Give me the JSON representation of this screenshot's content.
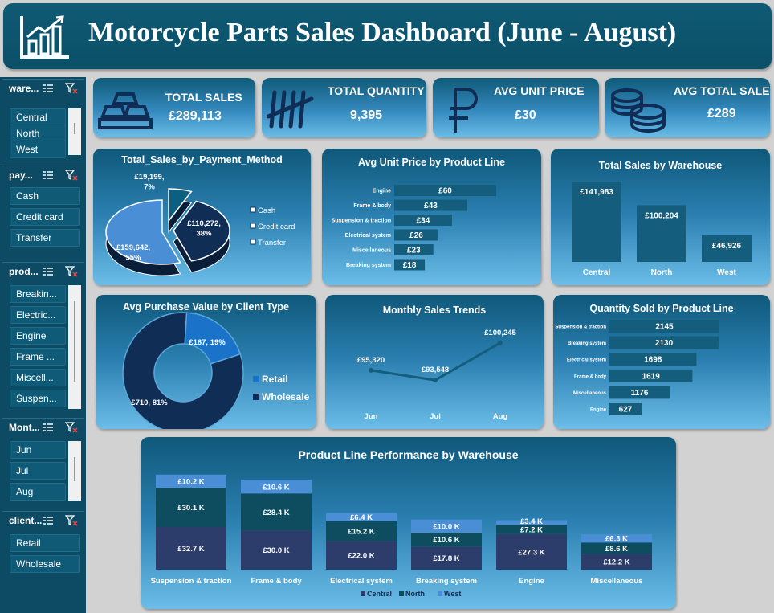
{
  "title": "Motorcycle Parts Sales Dashboard (June - August)",
  "kpis": {
    "total_sales": {
      "label": "TOTAL SALES",
      "value": "£289,113"
    },
    "total_quantity": {
      "label": "TOTAL QUANTITY",
      "value": "9,395"
    },
    "avg_unit_price": {
      "label": "AVG UNIT PRICE",
      "value": "£30"
    },
    "avg_total_sales": {
      "label": "AVG TOTAL SALES",
      "value": "£289"
    }
  },
  "slicers": {
    "warehouse": {
      "title": "ware...",
      "items": [
        "Central",
        "North",
        "West"
      ]
    },
    "payment": {
      "title": "pay...",
      "items": [
        "Cash",
        "Credit card",
        "Transfer"
      ]
    },
    "product": {
      "title": "prod...",
      "items": [
        "Breakin...",
        "Electric...",
        "Engine",
        "Frame ...",
        "Miscell...",
        "Suspen..."
      ]
    },
    "month": {
      "title": "Mont...",
      "items": [
        "Jun",
        "Jul",
        "Aug"
      ]
    },
    "client": {
      "title": "client...",
      "items": [
        "Retail",
        "Wholesale"
      ]
    }
  },
  "colors": {
    "navy": "#0f2d55",
    "teal": "#0b4f6c",
    "blue": "#4a8fd6",
    "bar": "#145d7c",
    "text": "#ffffff"
  },
  "chart_data": [
    {
      "id": "payment",
      "type": "pie",
      "title": "Total_Sales_by_Payment_Method",
      "categories": [
        "Cash",
        "Credit card",
        "Transfer"
      ],
      "values": [
        19199,
        110272,
        159642
      ],
      "labels": [
        "£19,199,\n7%",
        "£110,272,\n38%",
        "£159,642,\n55%"
      ],
      "legend": "right"
    },
    {
      "id": "unit_price",
      "type": "bar",
      "title": "Avg Unit Price by Product Line",
      "categories": [
        "Engine",
        "Frame & body",
        "Suspension & traction",
        "Electrical system",
        "Miscellaneous",
        "Breaking system"
      ],
      "values": [
        60,
        43,
        34,
        26,
        23,
        18
      ],
      "labels": [
        "£60",
        "£43",
        "£34",
        "£26",
        "£23",
        "£18"
      ]
    },
    {
      "id": "warehouse",
      "type": "bar",
      "title": "Total Sales by Warehouse",
      "categories": [
        "Central",
        "North",
        "West"
      ],
      "values": [
        141983,
        100204,
        46926
      ],
      "labels": [
        "£141,983",
        "£100,204",
        "£46,926"
      ]
    },
    {
      "id": "client",
      "type": "pie",
      "title": "Avg Purchase Value by Client Type",
      "categories": [
        "Retail",
        "Wholesale"
      ],
      "values": [
        167,
        710
      ],
      "labels": [
        "£167, 19%",
        "£710, 81%"
      ],
      "legend": "right"
    },
    {
      "id": "monthly",
      "type": "line",
      "title": "Monthly Sales Trends",
      "categories": [
        "Jun",
        "Jul",
        "Aug"
      ],
      "values": [
        95320,
        93548,
        100245
      ],
      "labels": [
        "£95,320",
        "£93,548",
        "£100,245"
      ]
    },
    {
      "id": "quantity",
      "type": "bar",
      "title": "Quantity Sold by Product Line",
      "categories": [
        "Suspension & traction",
        "Breaking system",
        "Electrical system",
        "Frame & body",
        "Miscellaneous",
        "Engine"
      ],
      "values": [
        2145,
        2130,
        1698,
        1619,
        1176,
        627
      ],
      "labels": [
        "2145",
        "2130",
        "1698",
        "1619",
        "1176",
        "627"
      ]
    },
    {
      "id": "product_warehouse",
      "type": "bar",
      "title": "Product Line Performance by Warehouse",
      "categories": [
        "Suspension & traction",
        "Frame & body",
        "Electrical system",
        "Breaking system",
        "Engine",
        "Miscellaneous"
      ],
      "series": [
        {
          "name": "Central",
          "values": [
            32.7,
            30.0,
            22.0,
            17.8,
            27.3,
            12.2
          ],
          "labels": [
            "£32.7 K",
            "£30.0 K",
            "£22.0 K",
            "£17.8 K",
            "£27.3 K",
            "£12.2 K"
          ]
        },
        {
          "name": "North",
          "values": [
            30.1,
            28.4,
            15.2,
            10.6,
            7.2,
            8.6
          ],
          "labels": [
            "£30.1 K",
            "£28.4 K",
            "£15.2 K",
            "£10.6 K",
            "£7.2 K",
            "£8.6 K"
          ]
        },
        {
          "name": "West",
          "values": [
            10.2,
            10.6,
            6.4,
            10.0,
            3.4,
            6.3
          ],
          "labels": [
            "£10.2 K",
            "£10.6 K",
            "£6.4 K",
            "£10.0 K",
            "£3.4 K",
            "£6.3 K"
          ]
        }
      ],
      "legend": "bottom"
    }
  ]
}
